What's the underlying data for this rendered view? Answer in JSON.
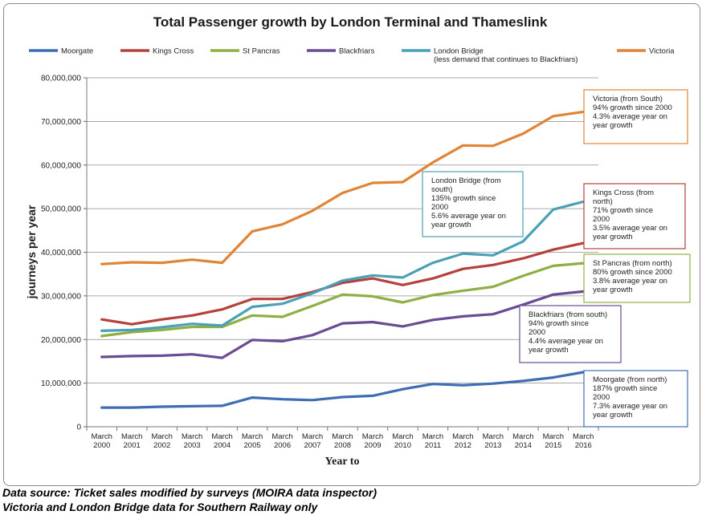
{
  "chart_data": {
    "type": "line",
    "title": "Total Passenger growth by London Terminal and Thameslink",
    "xlabel": "Year to",
    "ylabel": "journeys per year",
    "ylim": [
      0,
      80000000
    ],
    "yticks": [
      "0",
      "10,000,000",
      "20,000,000",
      "30,000,000",
      "40,000,000",
      "50,000,000",
      "60,000,000",
      "70,000,000",
      "80,000,000"
    ],
    "x": [
      [
        "March",
        "2000"
      ],
      [
        "March",
        "2001"
      ],
      [
        "March",
        "2002"
      ],
      [
        "March",
        "2003"
      ],
      [
        "March",
        "2004"
      ],
      [
        "March",
        "2005"
      ],
      [
        "March",
        "2006"
      ],
      [
        "March",
        "2007"
      ],
      [
        "March",
        "2008"
      ],
      [
        "March",
        "2009"
      ],
      [
        "March",
        "2010"
      ],
      [
        "March",
        "2011"
      ],
      [
        "March",
        "2012"
      ],
      [
        "March",
        "2013"
      ],
      [
        "March",
        "2014"
      ],
      [
        "March",
        "2015"
      ],
      [
        "March",
        "2016"
      ]
    ],
    "grid": "horizontal",
    "legend_position": "top",
    "series": [
      {
        "name": "Moorgate",
        "color": "#3f6db3",
        "values": [
          4400000,
          4400000,
          4600000,
          4700000,
          4800000,
          6700000,
          6300000,
          6100000,
          6800000,
          7100000,
          8600000,
          9800000,
          9500000,
          9900000,
          10500000,
          11300000,
          12500000
        ]
      },
      {
        "name": "Kings Cross",
        "color": "#b5413d",
        "values": [
          24600000,
          23500000,
          24600000,
          25500000,
          26900000,
          29300000,
          29300000,
          30900000,
          33000000,
          34000000,
          32500000,
          34000000,
          36200000,
          37100000,
          38600000,
          40600000,
          42100000
        ]
      },
      {
        "name": "St Pancras",
        "color": "#8faf45",
        "values": [
          20800000,
          21700000,
          22200000,
          22900000,
          22900000,
          25500000,
          25200000,
          27700000,
          30300000,
          29900000,
          28500000,
          30200000,
          31200000,
          32100000,
          34600000,
          36900000,
          37500000
        ]
      },
      {
        "name": "Blackfriars",
        "color": "#6b4b93",
        "values": [
          16000000,
          16200000,
          16300000,
          16600000,
          15800000,
          19900000,
          19600000,
          21000000,
          23700000,
          24000000,
          23000000,
          24500000,
          25300000,
          25800000,
          28000000,
          30300000,
          31000000
        ]
      },
      {
        "name": "London Bridge",
        "name_line2": "(less demand that continues to Blackfriars)",
        "color": "#4aa0b6",
        "values": [
          22000000,
          22200000,
          22800000,
          23600000,
          23200000,
          27500000,
          28200000,
          30600000,
          33500000,
          34700000,
          34200000,
          37600000,
          39700000,
          39300000,
          42500000,
          49800000,
          51600000
        ]
      },
      {
        "name": "Victoria",
        "color": "#e08436",
        "values": [
          37300000,
          37700000,
          37600000,
          38300000,
          37600000,
          44800000,
          46400000,
          49500000,
          53600000,
          55900000,
          56100000,
          60600000,
          64500000,
          64400000,
          67200000,
          71200000,
          72200000
        ]
      }
    ],
    "annotations": [
      {
        "series": "Victoria",
        "lines": [
          "Victoria (from South)",
          "94% growth since 2000",
          "4.3% average year on",
          "year growth"
        ]
      },
      {
        "series": "London Bridge",
        "lines": [
          "London Bridge (from",
          "south)",
          "135% growth since",
          "2000",
          "5.6% average year on",
          "year growth"
        ]
      },
      {
        "series": "Kings Cross",
        "lines": [
          "Kings Cross (from",
          "north)",
          "71% growth since",
          "2000",
          "3.5% average year on",
          "year growth"
        ]
      },
      {
        "series": "St Pancras",
        "lines": [
          "St Pancras (from north)",
          "80% growth since 2000",
          "3.8% average year on",
          "year growth"
        ]
      },
      {
        "series": "Blackfriars",
        "lines": [
          "Blackfriars (from south)",
          "94%  growth since",
          "2000",
          "4.4% average year on",
          "year growth"
        ]
      },
      {
        "series": "Moorgate",
        "lines": [
          "Moorgate (from north)",
          "187% growth since",
          "2000",
          "7.3% average year on",
          "year growth"
        ]
      }
    ]
  },
  "footnotes": [
    "Data source: Ticket sales modified by surveys (MOIRA data inspector)",
    "Victoria and London Bridge data for Southern Railway only"
  ]
}
